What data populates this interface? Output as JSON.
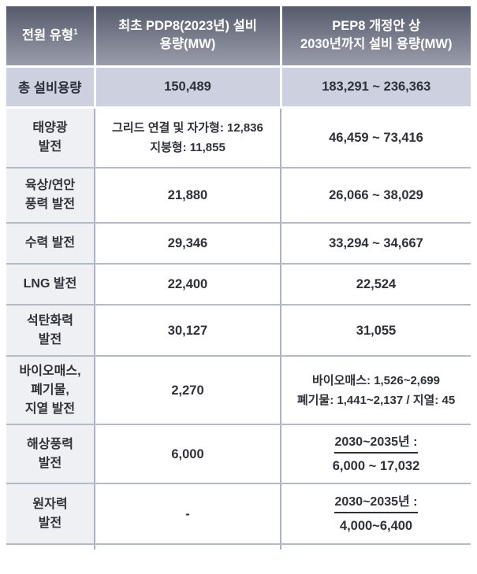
{
  "table": {
    "header": {
      "power_type": "전원 유형",
      "power_type_footnote": "1",
      "pdp8": [
        "최초 PDP8(2023년) 설비",
        "용량(MW)"
      ],
      "pep8": [
        "PEP8 개정안 상",
        "2030년까지 설비 용량(MW)"
      ]
    },
    "total_row": {
      "label": "총 설비용량",
      "pdp8": "150,489",
      "pep8": "183,291 ~ 236,363"
    },
    "rows": [
      {
        "label": [
          "태양광",
          "발전"
        ],
        "pdp8": {
          "lines": [
            "그리드 연결 및 자가형: 12,836",
            "지붕형: 11,855"
          ]
        },
        "pep8": {
          "lines": [
            "46,459 ~ 73,416"
          ]
        }
      },
      {
        "label": [
          "육상/연안",
          "풍력 발전"
        ],
        "pdp8": {
          "lines": [
            "21,880"
          ]
        },
        "pep8": {
          "lines": [
            "26,066 ~ 38,029"
          ]
        }
      },
      {
        "label": [
          "수력 발전"
        ],
        "pdp8": {
          "lines": [
            "29,346"
          ]
        },
        "pep8": {
          "lines": [
            "33,294 ~ 34,667"
          ]
        }
      },
      {
        "label": [
          "LNG 발전"
        ],
        "pdp8": {
          "lines": [
            "22,400"
          ]
        },
        "pep8": {
          "lines": [
            "22,524"
          ]
        }
      },
      {
        "label": [
          "석탄화력",
          "발전"
        ],
        "pdp8": {
          "lines": [
            "30,127"
          ]
        },
        "pep8": {
          "lines": [
            "31,055"
          ]
        }
      },
      {
        "label": [
          "바이오매스,",
          "폐기물,",
          "지열 발전"
        ],
        "pdp8": {
          "lines": [
            "2,270"
          ]
        },
        "pep8": {
          "lines": [
            "바이오매스: 1,526~2,699",
            "폐기물: 1,441~2,137 / 지열: 45"
          ]
        }
      },
      {
        "label": [
          "해상풍력",
          "발전"
        ],
        "pdp8": {
          "lines": [
            "6,000"
          ]
        },
        "pep8": {
          "heading": "2030~2035년 :",
          "lines": [
            "6,000 ~ 17,032"
          ]
        }
      },
      {
        "label": [
          "원자력",
          "발전"
        ],
        "pdp8": {
          "lines": [
            "-"
          ]
        },
        "pep8": {
          "heading": "2030~2035년 :",
          "lines": [
            "4,000~6,400"
          ]
        }
      }
    ]
  },
  "colors": {
    "header_gradient_top": "#565b6c",
    "header_gradient_bottom": "#999dab",
    "total_row_bg": "#cdd1df",
    "label_col_bg": "#eff0f3",
    "border_vertical": "#a9b1cb",
    "border_horizontal": "#b4bac8",
    "text": "#2e3138"
  }
}
